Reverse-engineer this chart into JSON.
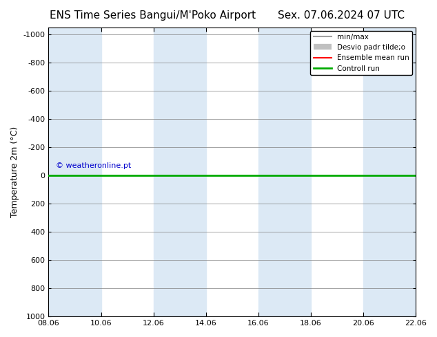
{
  "title_left": "ENS Time Series Bangui/M'Poko Airport",
  "title_right": "Sex. 07.06.2024 07 UTC",
  "ylabel": "Temperature 2m (°C)",
  "ylim": [
    1000,
    -1050
  ],
  "yticks": [
    1000,
    800,
    600,
    400,
    200,
    0,
    -200,
    -400,
    -600,
    -800,
    -1000
  ],
  "xlim_num": [
    0,
    14
  ],
  "xtick_labels": [
    "08.06",
    "10.06",
    "12.06",
    "14.06",
    "16.06",
    "18.06",
    "20.06",
    "22.06"
  ],
  "xtick_positions": [
    0,
    2,
    4,
    6,
    8,
    10,
    12,
    14
  ],
  "green_line_y": 0,
  "watermark": "© weatheronline.pt",
  "watermark_color": "#0000cd",
  "background_color": "#ffffff",
  "plot_bg_color": "#dce9f5",
  "band_color": "#dce9f5",
  "band_positions": [
    0,
    2,
    4,
    6,
    8,
    10,
    12,
    14
  ],
  "legend_items": [
    {
      "label": "min/max",
      "color": "#a0a0a0",
      "lw": 1.5
    },
    {
      "label": "Desvio padr tilde;o",
      "color": "#c0c0c0",
      "lw": 6
    },
    {
      "label": "Ensemble mean run",
      "color": "#ff0000",
      "lw": 1.5
    },
    {
      "label": "Controll run",
      "color": "#00aa00",
      "lw": 2
    }
  ],
  "title_fontsize": 11,
  "axis_fontsize": 9,
  "tick_fontsize": 8
}
